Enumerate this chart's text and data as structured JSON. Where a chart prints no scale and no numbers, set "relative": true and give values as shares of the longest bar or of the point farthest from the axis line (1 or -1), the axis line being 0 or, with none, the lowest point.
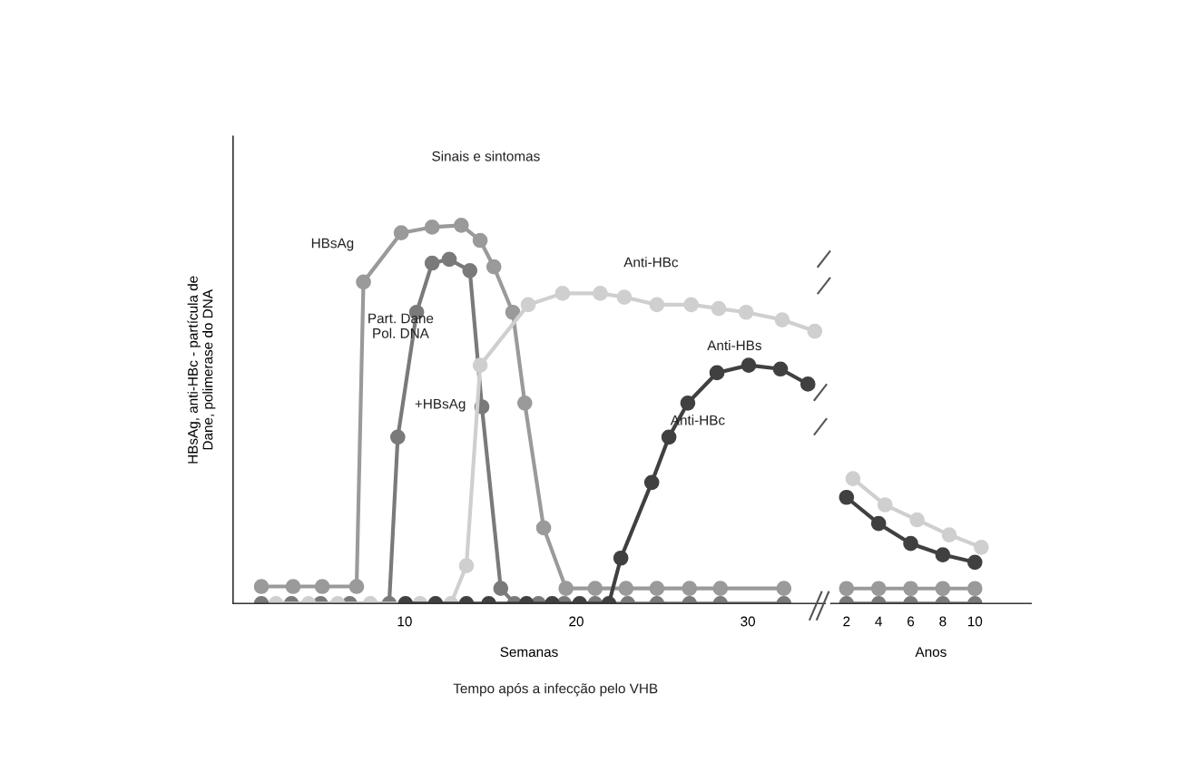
{
  "chart_data": [
    {
      "type": "line",
      "relative": true,
      "marker": "circle",
      "tick_labels": "x",
      "ylabel": "HBsAg, anti-HBc - partícula de\nDane, polimerase do DNA",
      "xlabel": "Semanas",
      "xlim": [
        0,
        34.5
      ],
      "xticks": [
        10,
        20,
        30
      ],
      "annotations": [
        "Sinais e sintomas",
        "+HBsAg",
        "Anti-HBc",
        "Tempo após a infecção pelo VHB"
      ],
      "series": [
        {
          "name": "HBsAg",
          "color": "#9a9a9a",
          "x": [
            1.65,
            3.5,
            5.2,
            7.2,
            7.6,
            9.8,
            11.6,
            13.3,
            14.4,
            15.2,
            16.3,
            17.0,
            18.1,
            19.4,
            21.1,
            22.9,
            24.7,
            26.6,
            28.4,
            32.1
          ],
          "values": [
            0.045,
            0.045,
            0.045,
            0.045,
            0.85,
            0.98,
            0.995,
            1.0,
            0.96,
            0.89,
            0.77,
            0.53,
            0.2,
            0.04,
            0.04,
            0.04,
            0.04,
            0.04,
            0.04,
            0.04
          ]
        },
        {
          "name": "Part. Dane\nPol. DNA",
          "color": "#7a7a7a",
          "x": [
            1.65,
            3.4,
            5.1,
            6.8,
            9.1,
            9.6,
            10.7,
            11.6,
            12.6,
            13.8,
            14.5,
            15.6,
            16.4,
            17.8,
            19.3,
            21.1,
            23.0,
            24.7,
            26.6,
            28.4,
            32.1
          ],
          "values": [
            0,
            0,
            0,
            0,
            0,
            0.44,
            0.77,
            0.9,
            0.91,
            0.88,
            0.52,
            0.04,
            0,
            0,
            0,
            0,
            0,
            0,
            0,
            0,
            0
          ]
        },
        {
          "name": "Anti-HBc",
          "color": "#cfcfcf",
          "x": [
            2.5,
            4.4,
            6.1,
            8.0,
            10.9,
            12.7,
            13.6,
            14.4,
            17.2,
            19.2,
            21.4,
            22.8,
            24.7,
            26.7,
            28.3,
            29.9,
            32.0,
            33.9
          ],
          "values": [
            0,
            0,
            0,
            0,
            0,
            0,
            0.1,
            0.63,
            0.79,
            0.82,
            0.82,
            0.81,
            0.79,
            0.79,
            0.78,
            0.77,
            0.75,
            0.72
          ]
        },
        {
          "name": "Anti-HBs",
          "color": "#404040",
          "x": [
            10.05,
            11.8,
            13.6,
            14.9,
            17.1,
            18.6,
            20.2,
            21.9,
            22.6,
            24.4,
            25.4,
            26.5,
            28.2,
            30.05,
            31.9,
            33.5
          ],
          "values": [
            0,
            0,
            0,
            0,
            0,
            0,
            0,
            0,
            0.12,
            0.32,
            0.44,
            0.53,
            0.61,
            0.63,
            0.62,
            0.58
          ]
        }
      ]
    },
    {
      "type": "line",
      "relative": true,
      "marker": "circle",
      "tick_labels": "x",
      "xlabel": "Anos",
      "xlim": [
        1.03,
        13.5
      ],
      "xticks": [
        2,
        4,
        6,
        8,
        10
      ],
      "series": [
        {
          "color": "#9a9a9a",
          "x": [
            2,
            4,
            6,
            8,
            10
          ],
          "values": [
            0.12,
            0.12,
            0.12,
            0.12,
            0.12
          ]
        },
        {
          "color": "#7a7a7a",
          "x": [
            2,
            4,
            6,
            8,
            10
          ],
          "values": [
            0,
            0,
            0,
            0,
            0
          ]
        },
        {
          "color": "#cfcfcf",
          "x": [
            2.4,
            4.4,
            6.4,
            8.4,
            10.4
          ],
          "values": [
            1.0,
            0.79,
            0.67,
            0.55,
            0.45
          ]
        },
        {
          "color": "#404040",
          "x": [
            2,
            4,
            6,
            8,
            10
          ],
          "values": [
            0.85,
            0.64,
            0.48,
            0.39,
            0.33
          ]
        }
      ]
    }
  ]
}
